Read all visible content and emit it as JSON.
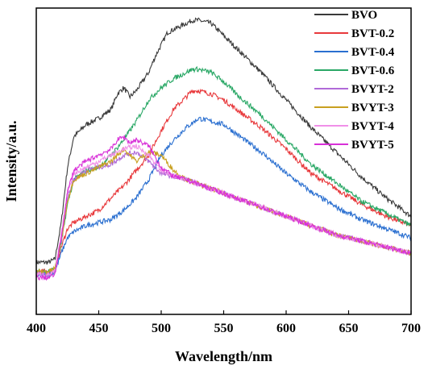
{
  "chart_data": {
    "type": "line",
    "xlabel": "Wavelength/nm",
    "ylabel": "Intensity/a.u.",
    "xlim": [
      400,
      700
    ],
    "ylim": [
      0,
      100
    ],
    "xticks": [
      "400",
      "450",
      "500",
      "550",
      "600",
      "650",
      "700"
    ],
    "y_tick_labels_shown": false,
    "grid": false,
    "legend": "top-right",
    "series": [
      {
        "name": "BVO",
        "color": "#3a3a3a",
        "x": [
          400,
          410,
          415,
          420,
          425,
          430,
          440,
          450,
          460,
          465,
          470,
          475,
          480,
          490,
          495,
          500,
          505,
          510,
          520,
          525,
          530,
          540,
          550,
          560,
          580,
          600,
          620,
          640,
          660,
          680,
          700
        ],
        "y": [
          17,
          17,
          18,
          30,
          48,
          58,
          62,
          64,
          67,
          72,
          74,
          71,
          73,
          79,
          84,
          88,
          92,
          93,
          95,
          96,
          96,
          95,
          91,
          87,
          79,
          70,
          61,
          53,
          45,
          38,
          32
        ]
      },
      {
        "name": "BVT-0.2",
        "color": "#e8393c",
        "x": [
          400,
          410,
          415,
          420,
          425,
          430,
          440,
          450,
          460,
          470,
          480,
          490,
          500,
          510,
          520,
          525,
          530,
          540,
          550,
          560,
          580,
          600,
          620,
          640,
          660,
          680,
          700
        ],
        "y": [
          14,
          14,
          15,
          22,
          28,
          30,
          32,
          34,
          38,
          42,
          47,
          52,
          60,
          67,
          71,
          73,
          73,
          72,
          70,
          67,
          61,
          54,
          46,
          41,
          36,
          32,
          29
        ]
      },
      {
        "name": "BVT-0.4",
        "color": "#2a6fd0",
        "x": [
          400,
          410,
          415,
          420,
          425,
          430,
          440,
          450,
          460,
          470,
          480,
          490,
          500,
          510,
          520,
          530,
          540,
          550,
          560,
          580,
          600,
          620,
          640,
          660,
          680,
          700
        ],
        "y": [
          13,
          13,
          14,
          20,
          25,
          27,
          29,
          30,
          31,
          34,
          38,
          44,
          52,
          57,
          61,
          64,
          63,
          62,
          59,
          53,
          46,
          40,
          35,
          31,
          28,
          25
        ]
      },
      {
        "name": "BVT-0.6",
        "color": "#2aa866",
        "x": [
          400,
          410,
          415,
          420,
          425,
          430,
          440,
          450,
          460,
          470,
          480,
          490,
          500,
          510,
          520,
          525,
          530,
          540,
          550,
          560,
          580,
          600,
          620,
          640,
          660,
          680,
          700
        ],
        "y": [
          14,
          14,
          15,
          23,
          36,
          44,
          47,
          48,
          52,
          57,
          63,
          70,
          74,
          77,
          79,
          80,
          80,
          79,
          76,
          72,
          65,
          57,
          49,
          43,
          37,
          33,
          29
        ]
      },
      {
        "name": "BVYT-2",
        "color": "#b06ad8",
        "x": [
          400,
          410,
          415,
          420,
          425,
          430,
          440,
          450,
          460,
          470,
          480,
          490,
          500,
          510,
          520,
          540,
          560,
          580,
          600,
          620,
          640,
          660,
          680,
          700
        ],
        "y": [
          13,
          13,
          14,
          24,
          38,
          44,
          47,
          48,
          49,
          52,
          53,
          50,
          46,
          45,
          44,
          41,
          38,
          35,
          32,
          29,
          26,
          24,
          22,
          20
        ]
      },
      {
        "name": "BVYT-3",
        "color": "#c8a020",
        "x": [
          400,
          410,
          415,
          420,
          425,
          430,
          440,
          450,
          460,
          470,
          480,
          490,
          500,
          510,
          520,
          540,
          560,
          580,
          600,
          620,
          640,
          660,
          680,
          700
        ],
        "y": [
          14,
          14,
          15,
          24,
          37,
          44,
          46,
          48,
          50,
          54,
          50,
          53,
          52,
          47,
          44,
          41,
          38,
          35,
          32,
          29,
          26,
          24,
          22,
          20
        ]
      },
      {
        "name": "BVYT-4",
        "color": "#f090e8",
        "x": [
          400,
          410,
          415,
          420,
          425,
          430,
          440,
          450,
          460,
          470,
          480,
          490,
          500,
          510,
          520,
          540,
          560,
          580,
          600,
          620,
          640,
          660,
          680,
          700
        ],
        "y": [
          13,
          13,
          14,
          26,
          40,
          46,
          48,
          50,
          52,
          54,
          55,
          52,
          47,
          45,
          44,
          41,
          38,
          35,
          32,
          29,
          26,
          24,
          22,
          20
        ]
      },
      {
        "name": "BVYT-5",
        "color": "#d830d8",
        "x": [
          400,
          410,
          415,
          420,
          425,
          430,
          440,
          450,
          460,
          465,
          470,
          475,
          480,
          490,
          500,
          510,
          520,
          540,
          560,
          580,
          600,
          620,
          640,
          660,
          680,
          700
        ],
        "y": [
          12,
          12,
          13,
          25,
          40,
          47,
          50,
          52,
          54,
          57,
          58,
          56,
          57,
          55,
          48,
          45,
          44,
          41,
          38,
          35,
          32,
          29,
          26,
          24,
          22,
          20
        ]
      }
    ]
  }
}
